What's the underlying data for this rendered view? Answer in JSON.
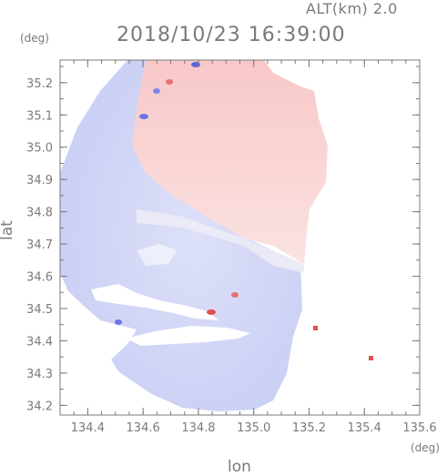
{
  "header": {
    "altitude_label": "ALT(km) 2.0",
    "timestamp": "2018/10/23 16:39:00"
  },
  "axes": {
    "x_label": "lon",
    "y_label": "lat",
    "x_unit": "(deg)",
    "y_unit": "(deg)",
    "x_range": [
      134.3,
      135.6
    ],
    "y_range": [
      34.17,
      35.27
    ],
    "x_ticks": [
      "134.4",
      "134.6",
      "134.8",
      "135.0",
      "135.2",
      "135.4",
      "135.6"
    ],
    "y_ticks": [
      "34.2",
      "34.3",
      "34.4",
      "34.5",
      "34.6",
      "34.7",
      "34.8",
      "34.9",
      "35.0",
      "35.1",
      "35.2"
    ]
  },
  "colors": {
    "axis": "#7a7a7a",
    "approaching": "#c9cff5",
    "receding": "#f9cfcf",
    "strong_approaching": "#5a66e0",
    "strong_receding": "#e05050"
  }
}
